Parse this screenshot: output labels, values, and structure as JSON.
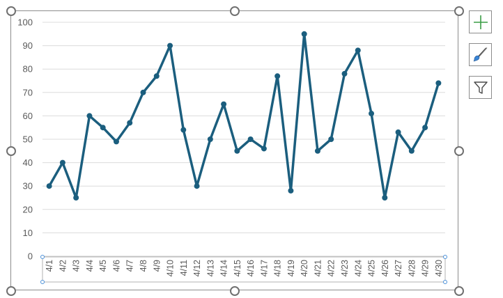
{
  "chart_data": {
    "type": "line",
    "categories": [
      "4/1",
      "4/2",
      "4/3",
      "4/4",
      "4/5",
      "4/6",
      "4/7",
      "4/8",
      "4/9",
      "4/10",
      "4/11",
      "4/12",
      "4/13",
      "4/14",
      "4/15",
      "4/16",
      "4/17",
      "4/18",
      "4/19",
      "4/20",
      "4/21",
      "4/22",
      "4/23",
      "4/24",
      "4/25",
      "4/26",
      "4/27",
      "4/28",
      "4/29",
      "4/30"
    ],
    "values": [
      30,
      40,
      25,
      60,
      55,
      49,
      57,
      70,
      77,
      90,
      54,
      30,
      50,
      65,
      45,
      50,
      46,
      77,
      28,
      95,
      45,
      50,
      78,
      88,
      61,
      25,
      53,
      45,
      55,
      74
    ],
    "title": "",
    "xlabel": "",
    "ylabel": "",
    "ylim": [
      0,
      100
    ],
    "yticks": [
      0,
      10,
      20,
      30,
      40,
      50,
      60,
      70,
      80,
      90,
      100
    ],
    "grid": true,
    "line_color": "#1b5e7e"
  },
  "side_buttons": [
    {
      "name": "chart-elements-button",
      "icon": "plus-icon"
    },
    {
      "name": "chart-styles-button",
      "icon": "paintbrush-icon"
    },
    {
      "name": "chart-filters-button",
      "icon": "filter-icon"
    }
  ]
}
